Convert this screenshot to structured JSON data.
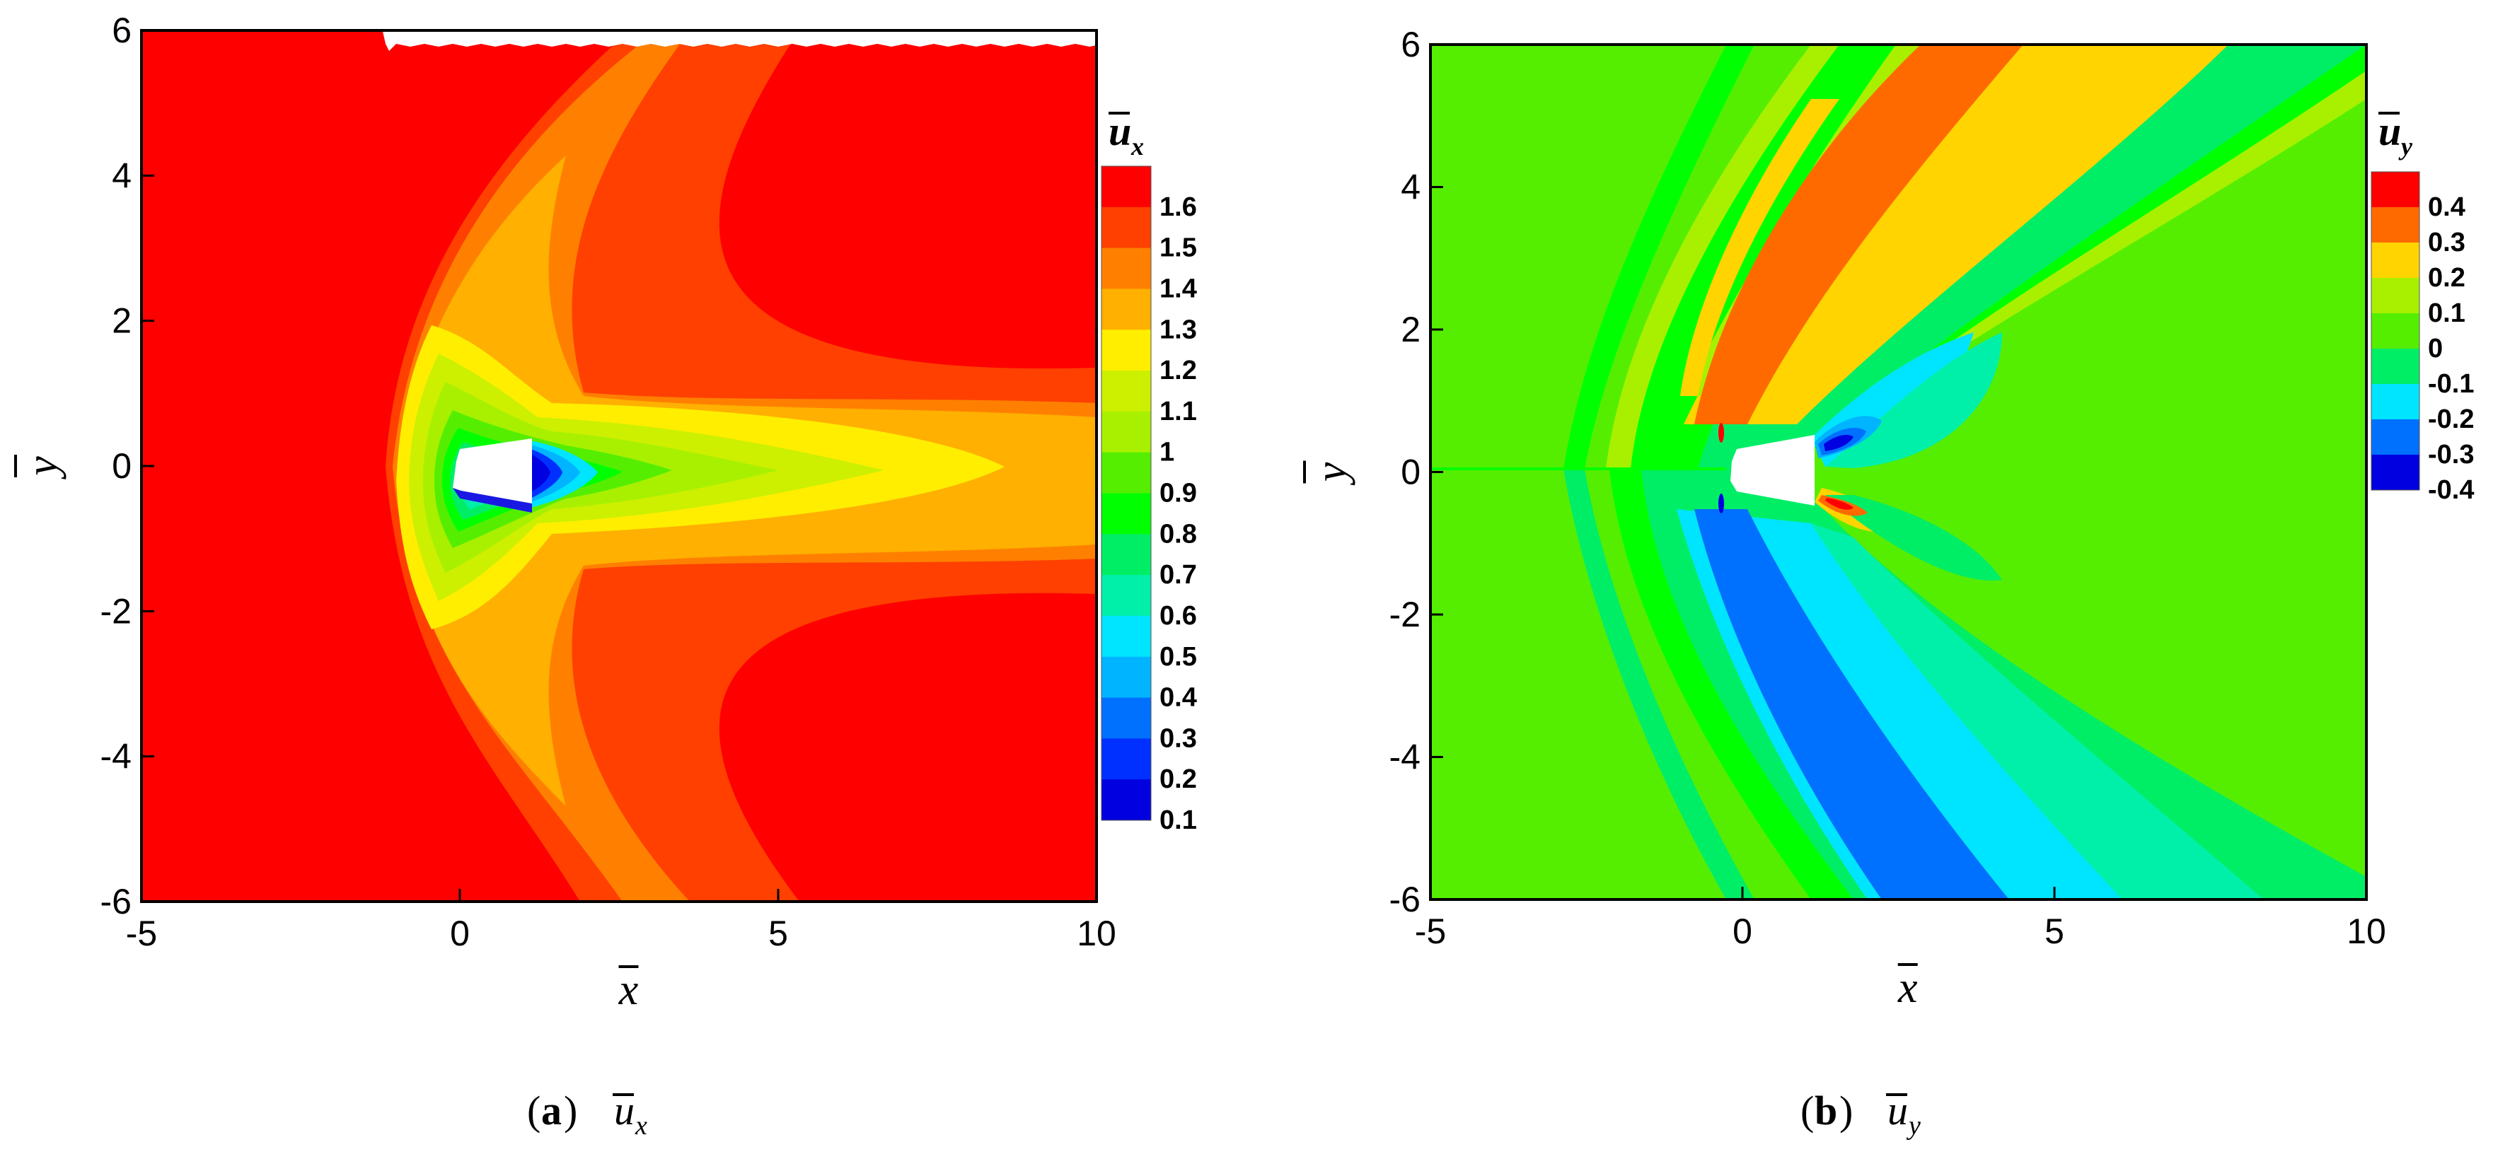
{
  "colors": {
    "red": "#ff0000",
    "orange_red": "#ff4000",
    "orange": "#ff8000",
    "light_orange": "#ffb000",
    "yellow": "#ffee00",
    "yellow_green": "#ccf000",
    "light_green": "#a8f000",
    "green": "#55ee00",
    "bright_green": "#00ff00",
    "mint_green": "#00ee66",
    "aqua": "#00f0aa",
    "cyan": "#00e5ff",
    "sky_blue": "#00b4ff",
    "blue": "#0070ff",
    "deep_blue": "#0030ff",
    "dark_blue": "#0000e0"
  },
  "chart_data": [
    {
      "type": "heatmap",
      "panel": "a",
      "caption_letter": "a",
      "caption_symbol": "u",
      "caption_subscript": "x",
      "xlabel": "x",
      "ylabel": "y",
      "xlim": [
        -5,
        10
      ],
      "ylim": [
        -6,
        6
      ],
      "xticks": [
        "-5",
        "0",
        "5",
        "10"
      ],
      "yticks": [
        "6",
        "4",
        "2",
        "0",
        "-2",
        "-4",
        "-6"
      ],
      "colorbar_title": "u",
      "colorbar_subscript": "x",
      "levels": [
        "1.6",
        "1.5",
        "1.4",
        "1.3",
        "1.2",
        "1.1",
        "1",
        "0.9",
        "0.8",
        "0.7",
        "0.6",
        "0.5",
        "0.4",
        "0.3",
        "0.2",
        "0.1"
      ],
      "level_colors": [
        "#ff0000",
        "#ff4000",
        "#ff8000",
        "#ffb000",
        "#ffee00",
        "#ccf000",
        "#a8f000",
        "#55ee00",
        "#00ff00",
        "#00ee66",
        "#00f0aa",
        "#00e5ff",
        "#00b4ff",
        "#0070ff",
        "#0030ff",
        "#0000e0"
      ],
      "background_value": "1.6",
      "grid": false
    },
    {
      "type": "heatmap",
      "panel": "b",
      "caption_letter": "b",
      "caption_symbol": "u",
      "caption_subscript": "y",
      "xlabel": "x",
      "ylabel": "y",
      "xlim": [
        -5,
        10
      ],
      "ylim": [
        -6,
        6
      ],
      "xticks": [
        "-5",
        "0",
        "5",
        "10"
      ],
      "yticks": [
        "6",
        "4",
        "2",
        "0",
        "-2",
        "-4",
        "-6"
      ],
      "colorbar_title": "u",
      "colorbar_subscript": "y",
      "levels": [
        "0.4",
        "0.3",
        "0.2",
        "0.1",
        "0",
        "-0.1",
        "-0.2",
        "-0.3",
        "-0.4"
      ],
      "level_colors": [
        "#ff0000",
        "#ff6a00",
        "#ffd400",
        "#a8f000",
        "#55ee00",
        "#00ee66",
        "#00e5ff",
        "#0070ff",
        "#0000e0"
      ],
      "background_value": "0",
      "grid": false
    }
  ]
}
